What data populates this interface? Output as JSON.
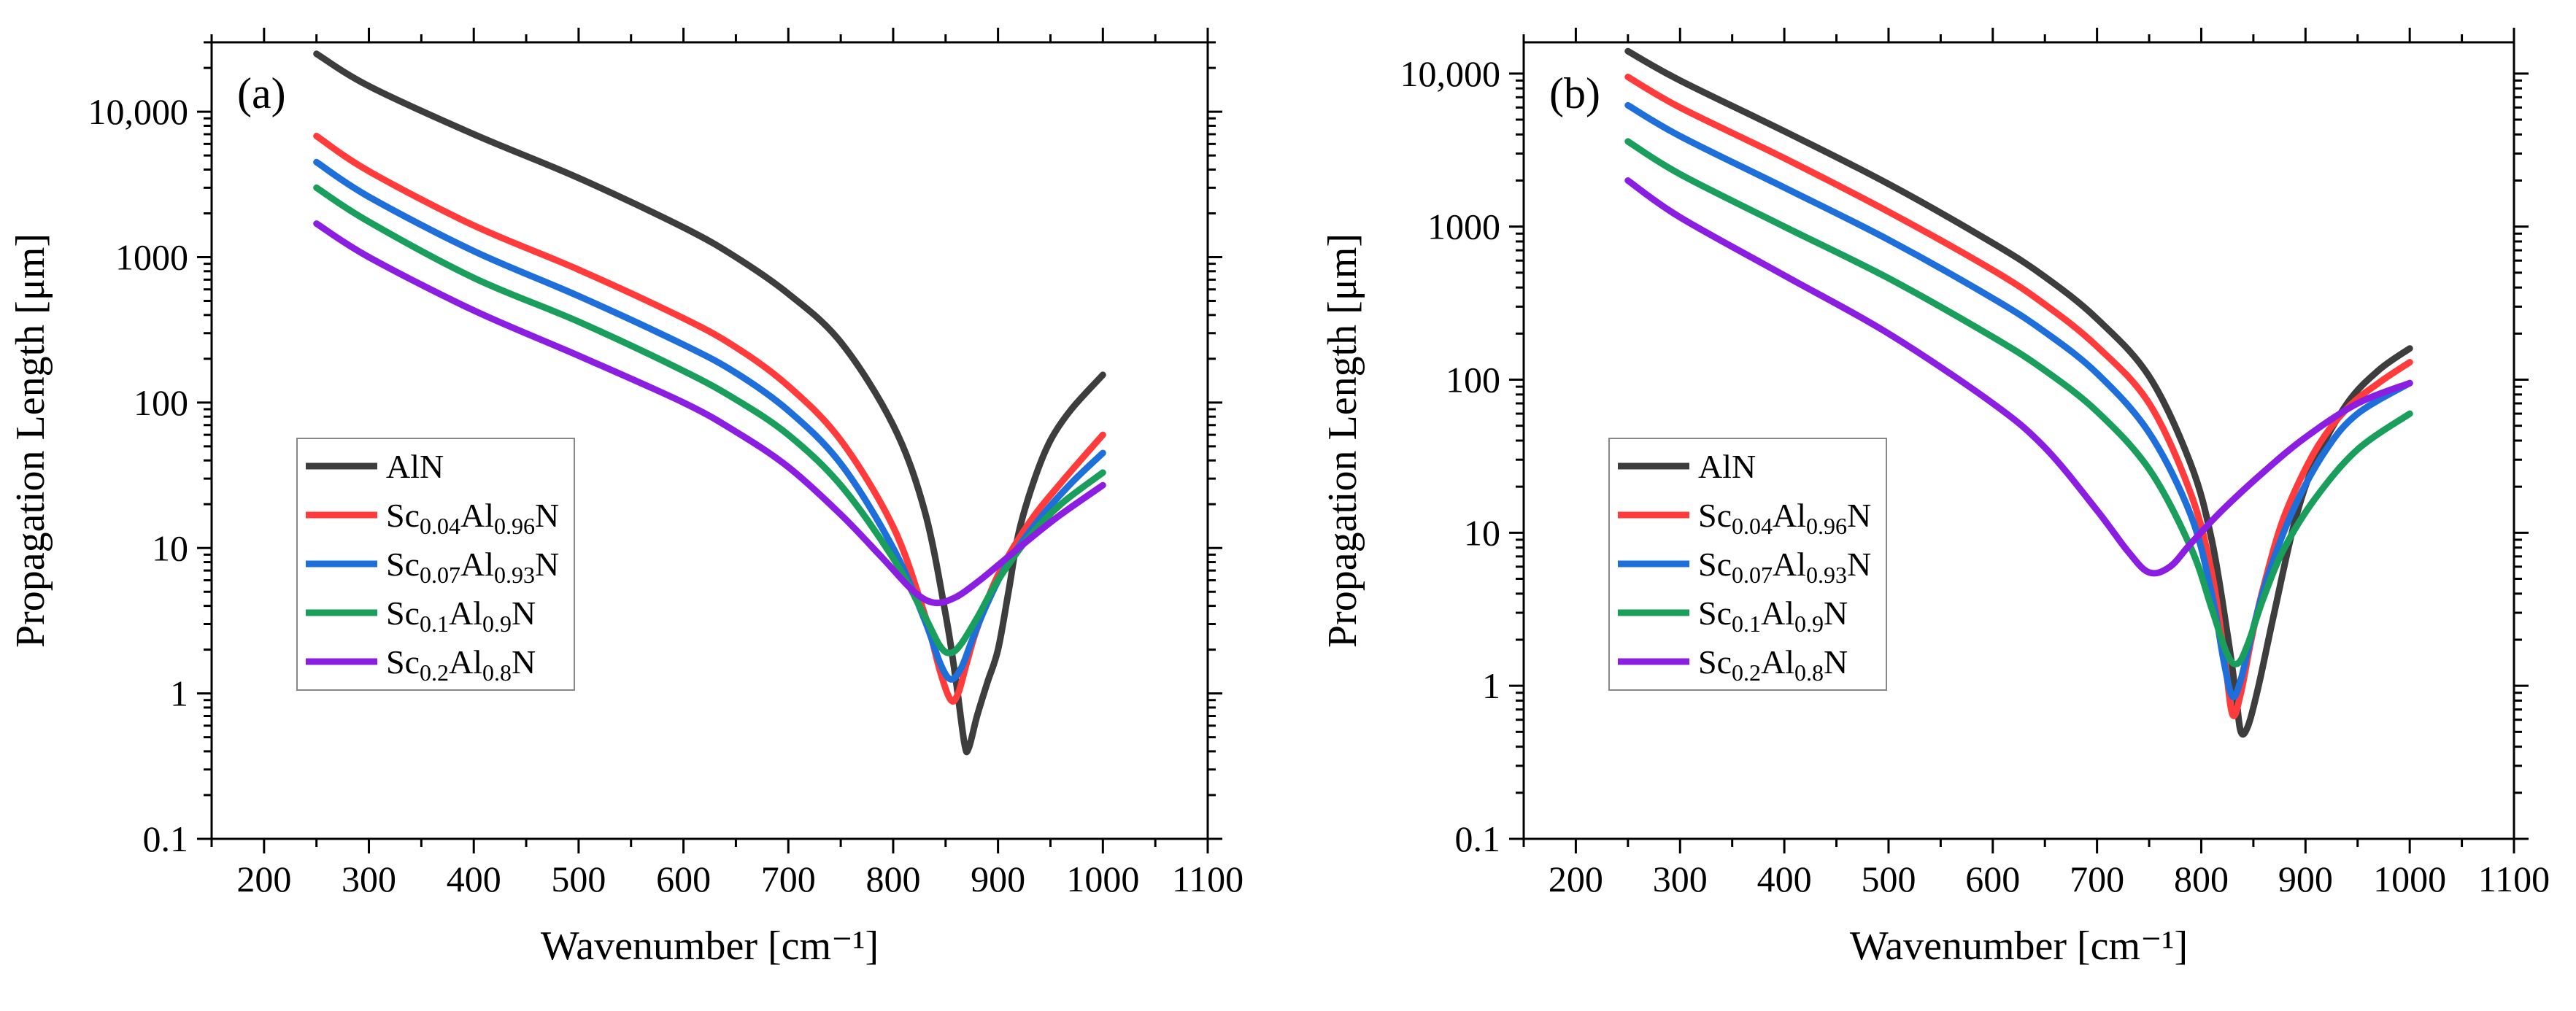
{
  "chart_data": [
    {
      "type": "line",
      "panel_label": "(a)",
      "xlabel": "Wavenumber [cm⁻¹]",
      "ylabel": "Propagation Length [μm]",
      "xlim": [
        150,
        1100
      ],
      "ylim": [
        0.1,
        30000
      ],
      "y_scale": "log",
      "x_ticks": [
        200,
        300,
        400,
        500,
        600,
        700,
        800,
        900,
        1000,
        1100
      ],
      "y_ticks": [
        0.1,
        1,
        10,
        100,
        1000,
        10000
      ],
      "y_tick_labels": [
        "0.1",
        "1",
        "10",
        "100",
        "1000",
        "10,000"
      ],
      "legend_position": "lower-left",
      "series": [
        {
          "name": "AlN",
          "color": "#3d3d3d",
          "x": [
            250,
            300,
            400,
            500,
            600,
            650,
            700,
            750,
            800,
            830,
            850,
            860,
            868,
            872,
            880,
            890,
            900,
            910,
            920,
            935,
            950,
            970,
            1000
          ],
          "y": [
            25000,
            15000,
            7000,
            3500,
            1600,
            1000,
            560,
            260,
            70,
            18,
            3.5,
            1.2,
            0.45,
            0.42,
            0.7,
            1.2,
            2.0,
            5.0,
            13,
            30,
            55,
            90,
            155
          ]
        },
        {
          "name": "Sc0.04Al0.96N",
          "color": "#ff3b3b",
          "x": [
            250,
            300,
            400,
            500,
            600,
            650,
            700,
            750,
            800,
            830,
            845,
            855,
            862,
            870,
            880,
            900,
            930,
            960,
            1000
          ],
          "y": [
            6800,
            3900,
            1650,
            820,
            380,
            240,
            130,
            55,
            14,
            3.5,
            1.4,
            0.9,
            1.0,
            1.6,
            2.8,
            6.5,
            15,
            28,
            60
          ]
        },
        {
          "name": "Sc0.07Al0.93N",
          "color": "#1e6fd9",
          "x": [
            250,
            300,
            400,
            500,
            600,
            650,
            700,
            750,
            800,
            830,
            845,
            855,
            865,
            875,
            890,
            910,
            940,
            970,
            1000
          ],
          "y": [
            4500,
            2600,
            1100,
            540,
            250,
            160,
            88,
            38,
            10,
            3.2,
            1.6,
            1.25,
            1.5,
            2.3,
            4.2,
            8.0,
            16,
            28,
            45
          ]
        },
        {
          "name": "Sc0.1Al0.9N",
          "color": "#1a9e5c",
          "x": [
            250,
            300,
            400,
            500,
            600,
            650,
            700,
            750,
            800,
            830,
            845,
            855,
            865,
            880,
            900,
            930,
            960,
            1000
          ],
          "y": [
            3000,
            1750,
            720,
            360,
            165,
            105,
            60,
            27,
            8.5,
            3.4,
            2.1,
            1.9,
            2.2,
            3.3,
            6.0,
            12,
            20,
            33
          ]
        },
        {
          "name": "Sc0.2Al0.8N",
          "color": "#8b1ee0",
          "x": [
            250,
            300,
            400,
            500,
            600,
            650,
            700,
            750,
            790,
            820,
            840,
            860,
            880,
            900,
            930,
            960,
            1000
          ],
          "y": [
            1700,
            1000,
            430,
            210,
            100,
            63,
            36,
            17,
            8.5,
            5.0,
            4.2,
            4.6,
            5.8,
            7.6,
            11.5,
            17,
            27
          ]
        }
      ]
    },
    {
      "type": "line",
      "panel_label": "(b)",
      "xlabel": "Wavenumber [cm⁻¹]",
      "ylabel": "Propagation Length [μm]",
      "xlim": [
        150,
        1100
      ],
      "ylim": [
        0.1,
        16000
      ],
      "y_scale": "log",
      "x_ticks": [
        200,
        300,
        400,
        500,
        600,
        700,
        800,
        900,
        1000,
        1100
      ],
      "y_ticks": [
        0.1,
        1,
        10,
        100,
        1000,
        10000
      ],
      "y_tick_labels": [
        "0.1",
        "1",
        "10",
        "100",
        "1000",
        "10,000"
      ],
      "legend_position": "lower-left",
      "series": [
        {
          "name": "AlN",
          "color": "#3d3d3d",
          "x": [
            250,
            300,
            400,
            500,
            600,
            650,
            700,
            750,
            790,
            810,
            825,
            833,
            838,
            845,
            855,
            870,
            890,
            910,
            940,
            970,
            1000
          ],
          "y": [
            14000,
            9000,
            4200,
            1900,
            780,
            470,
            250,
            105,
            28,
            9.0,
            2.2,
            0.9,
            0.5,
            0.55,
            1.0,
            3.0,
            12,
            30,
            70,
            115,
            160
          ]
        },
        {
          "name": "Sc0.04Al0.96N",
          "color": "#ff3b3b",
          "x": [
            250,
            300,
            400,
            500,
            600,
            650,
            700,
            750,
            790,
            810,
            822,
            830,
            838,
            848,
            860,
            880,
            910,
            940,
            970,
            1000
          ],
          "y": [
            9500,
            6000,
            2800,
            1250,
            520,
            310,
            165,
            70,
            18,
            5.5,
            1.6,
            0.65,
            0.9,
            2.0,
            4.5,
            13,
            35,
            65,
            95,
            130
          ]
        },
        {
          "name": "Sc0.07Al0.93N",
          "color": "#1e6fd9",
          "x": [
            250,
            300,
            400,
            500,
            600,
            650,
            700,
            750,
            790,
            810,
            822,
            830,
            838,
            850,
            865,
            890,
            920,
            950,
            1000
          ],
          "y": [
            6200,
            3900,
            1800,
            820,
            340,
            205,
            110,
            45,
            13,
            4.0,
            1.4,
            0.85,
            1.1,
            2.4,
            5.5,
            15,
            35,
            60,
            95
          ]
        },
        {
          "name": "Sc0.1Al0.9N",
          "color": "#1a9e5c",
          "x": [
            250,
            300,
            400,
            500,
            600,
            650,
            700,
            750,
            790,
            810,
            825,
            835,
            845,
            860,
            880,
            910,
            950,
            1000
          ],
          "y": [
            3600,
            2200,
            1000,
            460,
            190,
            115,
            62,
            26,
            8.0,
            3.2,
            1.6,
            1.4,
            1.9,
            3.8,
            8.0,
            17,
            35,
            60
          ]
        },
        {
          "name": "Sc0.2Al0.8N",
          "color": "#8b1ee0",
          "x": [
            250,
            300,
            400,
            500,
            600,
            650,
            700,
            730,
            750,
            770,
            790,
            820,
            860,
            900,
            950,
            1000
          ],
          "y": [
            2000,
            1150,
            480,
            200,
            70,
            36,
            14,
            7.5,
            5.5,
            6.0,
            8.5,
            14,
            25,
            42,
            70,
            95
          ]
        }
      ]
    }
  ]
}
